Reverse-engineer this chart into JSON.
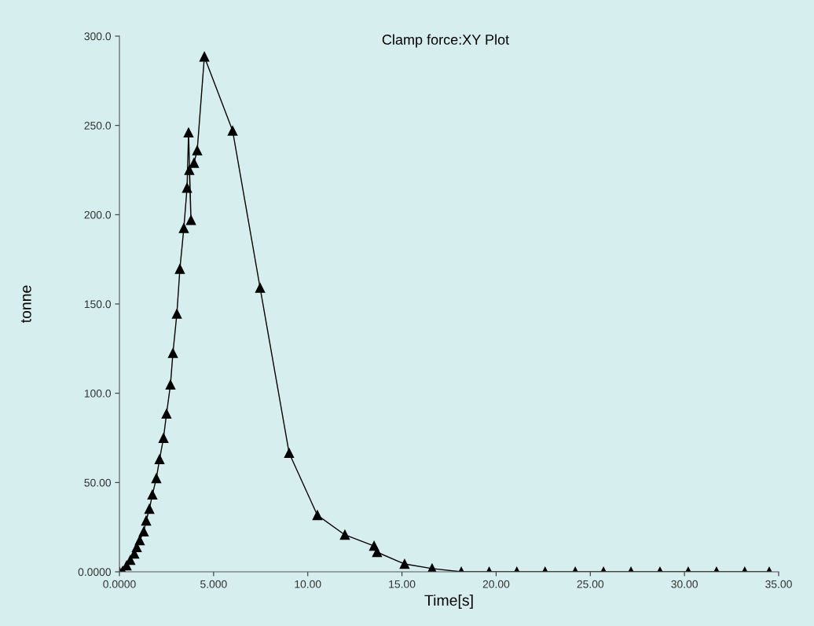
{
  "chart_data": {
    "type": "line",
    "title": "Clamp force:XY Plot",
    "xlabel": "Time[s]",
    "ylabel": "tonne",
    "series": [
      {
        "color": "#000000",
        "x": [
          0,
          0.17,
          0.38,
          0.58,
          0.79,
          0.92,
          1.08,
          1.29,
          1.42,
          1.59,
          1.75,
          1.96,
          2.13,
          2.34,
          2.5,
          2.71,
          2.84,
          3.05,
          3.21,
          3.42,
          3.59,
          3.67,
          3.8,
          3.71,
          3.96,
          4.13,
          4.51,
          6.01,
          7.47,
          9.01,
          10.51,
          11.97,
          13.52,
          13.68,
          15.14,
          16.6,
          18.15,
          19.63,
          21.1,
          22.6,
          24.2,
          25.7,
          27.16,
          28.7,
          30.2,
          31.7,
          33.2,
          34.5
        ],
        "values": [
          0,
          0.4,
          3.5,
          6.6,
          10.1,
          13.7,
          17.6,
          22.5,
          28.6,
          35.2,
          43.2,
          52.4,
          63,
          74.9,
          88.5,
          104.8,
          122.5,
          144.5,
          169.6,
          192.5,
          215,
          246,
          197,
          225,
          229,
          236,
          288.5,
          247,
          159,
          66.5,
          31.7,
          20.7,
          14.5,
          11,
          4.4,
          1.8,
          0,
          0,
          0,
          0,
          0,
          0,
          0,
          0,
          0,
          0,
          0,
          0
        ]
      }
    ],
    "xlim": [
      0,
      35
    ],
    "ylim": [
      0,
      300
    ],
    "xticks": [
      {
        "value": 0,
        "label": "0.0000"
      },
      {
        "value": 5,
        "label": "5.000"
      },
      {
        "value": 10,
        "label": "10.00"
      },
      {
        "value": 15,
        "label": "15.00"
      },
      {
        "value": 20,
        "label": "20.00"
      },
      {
        "value": 25,
        "label": "25.00"
      },
      {
        "value": 30,
        "label": "30.00"
      },
      {
        "value": 35,
        "label": "35.00"
      }
    ],
    "yticks": [
      {
        "value": 0,
        "label": "0.0000"
      },
      {
        "value": 50,
        "label": "50.00"
      },
      {
        "value": 100,
        "label": "100.0"
      },
      {
        "value": 150,
        "label": "150.0"
      },
      {
        "value": 200,
        "label": "200.0"
      },
      {
        "value": 250,
        "label": "250.0"
      },
      {
        "value": 300,
        "label": "300.0"
      }
    ],
    "grid": false,
    "marker": "triangle",
    "line_style": "solid"
  }
}
